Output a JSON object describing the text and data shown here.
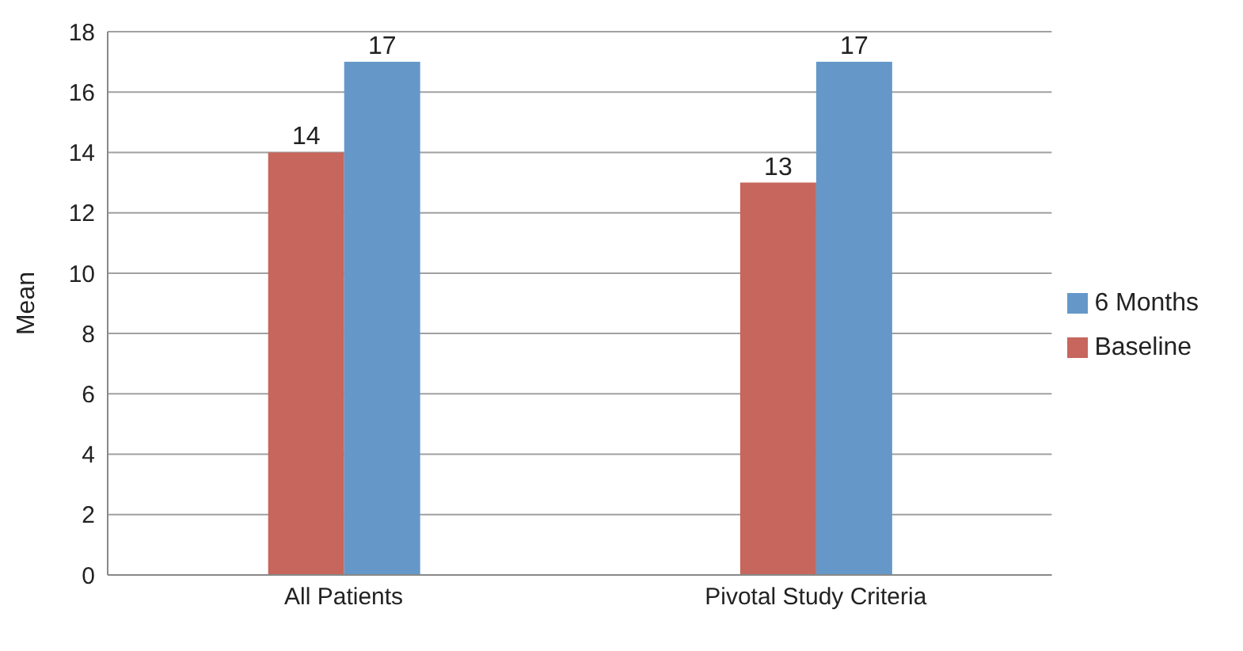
{
  "chart_data": {
    "type": "bar",
    "ylabel": "Mean",
    "categories": [
      "All Patients",
      "Pivotal Study Criteria"
    ],
    "series": [
      {
        "name": "Baseline",
        "color": "#c6665c",
        "values": [
          14,
          13
        ]
      },
      {
        "name": "6 Months",
        "color": "#6598c9",
        "values": [
          17,
          17
        ]
      }
    ],
    "ylim": [
      0,
      18
    ],
    "yticks": [
      0,
      2,
      4,
      6,
      8,
      10,
      12,
      14,
      16,
      18
    ],
    "grid": "y",
    "legend": "right",
    "data_labels": true
  }
}
